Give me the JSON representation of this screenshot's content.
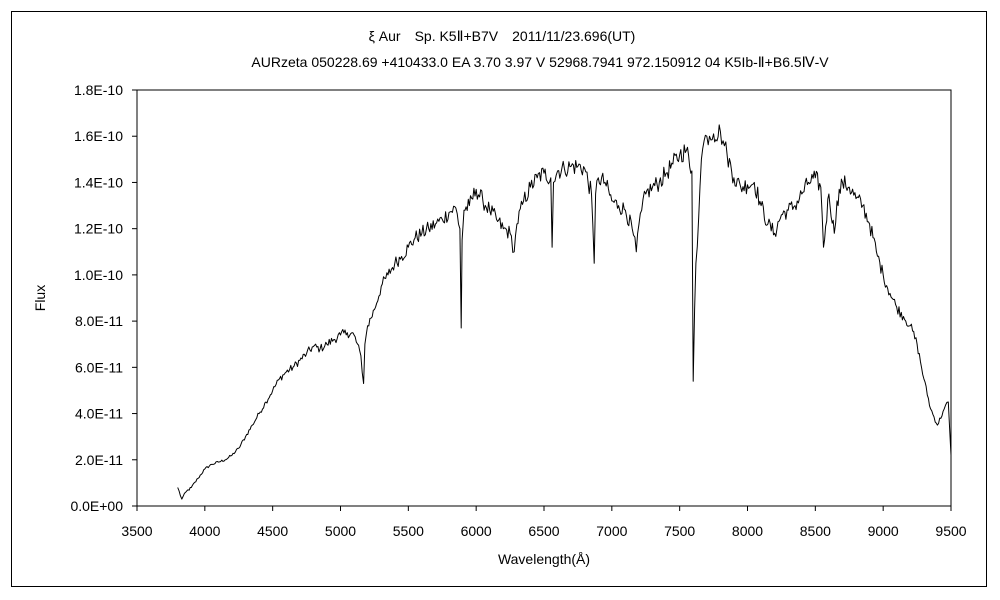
{
  "chart_data": {
    "type": "line",
    "title": "ξ Aur　Sp. K5Ⅱ+B7V　2011/11/23.696(UT)",
    "subtitle": "AURzeta 050228.69 +410433.0 EA 3.70 3.97 V 52968.7941 972.150912 04 K5Ib-Ⅱ+B6.5Ⅳ-V",
    "xlabel": "Wavelength(Å)",
    "ylabel": "Flux",
    "xlim": [
      3500,
      9500
    ],
    "ylim": [
      0,
      1.8e-10
    ],
    "x_ticks": [
      3500,
      4000,
      4500,
      5000,
      5500,
      6000,
      6500,
      7000,
      7500,
      8000,
      8500,
      9000,
      9500
    ],
    "x_tick_labels": [
      "3500",
      "4000",
      "4500",
      "5000",
      "5500",
      "6000",
      "6500",
      "7000",
      "7500",
      "8000",
      "8500",
      "9000",
      "9500"
    ],
    "y_ticks": [
      0,
      2e-11,
      4e-11,
      6e-11,
      8e-11,
      1e-10,
      1.2e-10,
      1.4e-10,
      1.6e-10,
      1.8e-10
    ],
    "y_tick_labels": [
      "0.0E+00",
      "2.0E-11",
      "4.0E-11",
      "6.0E-11",
      "8.0E-11",
      "1.0E-10",
      "1.2E-10",
      "1.4E-10",
      "1.6E-10",
      "1.8E-10"
    ],
    "grid": false,
    "line_color": "#000000",
    "series": [
      {
        "x": [
          3800,
          3830,
          3860,
          3900,
          3950,
          4000,
          4050,
          4100,
          4150,
          4200,
          4250,
          4300,
          4350,
          4400,
          4450,
          4500,
          4550,
          4600,
          4650,
          4700,
          4750,
          4800,
          4850,
          4900,
          4950,
          5000,
          5050,
          5100,
          5150,
          5170,
          5180,
          5200,
          5250,
          5300,
          5350,
          5400,
          5450,
          5500,
          5550,
          5600,
          5650,
          5700,
          5750,
          5800,
          5850,
          5880,
          5890,
          5896,
          5910,
          5950,
          6000,
          6050,
          6100,
          6150,
          6200,
          6250,
          6280,
          6300,
          6350,
          6400,
          6450,
          6500,
          6550,
          6560,
          6570,
          6600,
          6650,
          6700,
          6750,
          6800,
          6850,
          6870,
          6880,
          6900,
          6950,
          7000,
          7050,
          7100,
          7150,
          7180,
          7200,
          7220,
          7250,
          7300,
          7350,
          7400,
          7450,
          7500,
          7550,
          7590,
          7600,
          7610,
          7620,
          7640,
          7660,
          7680,
          7700,
          7720,
          7750,
          7800,
          7820,
          7850,
          7900,
          7950,
          8000,
          8050,
          8100,
          8150,
          8200,
          8250,
          8300,
          8350,
          8400,
          8450,
          8500,
          8540,
          8560,
          8600,
          8640,
          8660,
          8700,
          8750,
          8800,
          8850,
          8900,
          8950,
          9000,
          9050,
          9100,
          9150,
          9200,
          9250,
          9300,
          9350,
          9400,
          9450,
          9480,
          9500
        ],
        "y": [
          8e-12,
          3e-12,
          6e-12,
          8e-12,
          1.2e-11,
          1.6e-11,
          1.8e-11,
          1.9e-11,
          2e-11,
          2.2e-11,
          2.5e-11,
          3e-11,
          3.5e-11,
          4e-11,
          4.5e-11,
          5e-11,
          5.5e-11,
          5.8e-11,
          6e-11,
          6.3e-11,
          6.6e-11,
          6.9e-11,
          6.8e-11,
          7e-11,
          7.2e-11,
          7.4e-11,
          7.5e-11,
          7.4e-11,
          6.5e-11,
          5.3e-11,
          7e-11,
          7.8e-11,
          8.5e-11,
          9.5e-11,
          1e-10,
          1.05e-10,
          1.08e-10,
          1.12e-10,
          1.16e-10,
          1.18e-10,
          1.2e-10,
          1.22e-10,
          1.24e-10,
          1.27e-10,
          1.29e-10,
          1.2e-10,
          7.7e-11,
          1.15e-10,
          1.28e-10,
          1.3e-10,
          1.37e-10,
          1.32e-10,
          1.28e-10,
          1.24e-10,
          1.2e-10,
          1.18e-10,
          1.1e-10,
          1.22e-10,
          1.32e-10,
          1.38e-10,
          1.42e-10,
          1.44e-10,
          1.42e-10,
          1.12e-10,
          1.4e-10,
          1.45e-10,
          1.46e-10,
          1.47e-10,
          1.47e-10,
          1.46e-10,
          1.35e-10,
          1.05e-10,
          1.35e-10,
          1.42e-10,
          1.4e-10,
          1.32e-10,
          1.3e-10,
          1.28e-10,
          1.2e-10,
          1.1e-10,
          1.22e-10,
          1.28e-10,
          1.35e-10,
          1.38e-10,
          1.4e-10,
          1.44e-10,
          1.48e-10,
          1.52e-10,
          1.54e-10,
          1.45e-10,
          5.4e-11,
          8.5e-11,
          1.05e-10,
          1.25e-10,
          1.5e-10,
          1.58e-10,
          1.6e-10,
          1.6e-10,
          1.61e-10,
          1.62e-10,
          1.58e-10,
          1.52e-10,
          1.42e-10,
          1.38e-10,
          1.39e-10,
          1.4e-10,
          1.3e-10,
          1.22e-10,
          1.18e-10,
          1.26e-10,
          1.28e-10,
          1.3e-10,
          1.35e-10,
          1.4e-10,
          1.42e-10,
          1.38e-10,
          1.12e-10,
          1.35e-10,
          1.18e-10,
          1.32e-10,
          1.4e-10,
          1.38e-10,
          1.33e-10,
          1.3e-10,
          1.22e-10,
          1.1e-10,
          1e-10,
          9.2e-11,
          8.6e-11,
          8.2e-11,
          7.8e-11,
          7e-11,
          5.5e-11,
          4.2e-11,
          3.5e-11,
          4.2e-11,
          4.5e-11,
          2.2e-11
        ]
      }
    ]
  }
}
